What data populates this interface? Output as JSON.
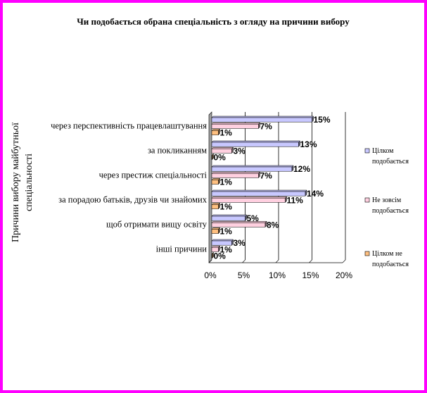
{
  "chart_data": {
    "type": "bar",
    "orientation": "horizontal",
    "view": "3d",
    "title": "Чи подобається обрана спеціальність з огляду на причини вибору",
    "ylabel_lines": [
      "Причини вибору майбутньої",
      "спеціальності"
    ],
    "xlabel": "",
    "categories": [
      "через перспективність працевлаштування",
      "за покликанням",
      "через престиж спеціальності",
      "за порадою батьків, друзів чи знайомих",
      "щоб отримати вищу освіту",
      "інші причини"
    ],
    "series": [
      {
        "name_lines": [
          "Цілком",
          "подобається"
        ],
        "color": "#c8c8ff",
        "values": [
          15,
          13,
          12,
          14,
          5,
          3
        ],
        "labels": [
          "15%",
          "13%",
          "12%",
          "14%",
          "5%",
          "3%"
        ]
      },
      {
        "name_lines": [
          "Не зовсім",
          "подобається"
        ],
        "color": "#ffd0e0",
        "values": [
          7,
          3,
          7,
          11,
          8,
          1
        ],
        "labels": [
          "7%",
          "3%",
          "7%",
          "11%",
          "8%",
          "1%"
        ]
      },
      {
        "name_lines": [
          "Цілком не",
          "подобається"
        ],
        "color": "#ffc080",
        "values": [
          1,
          0,
          1,
          1,
          1,
          0
        ],
        "labels": [
          "1%",
          "0%",
          "1%",
          "1%",
          "1%",
          "0%"
        ]
      }
    ],
    "xlim": [
      0,
      20
    ],
    "xticks": [
      "0%",
      "5%",
      "10%",
      "15%",
      "20%"
    ],
    "grid": true,
    "legend_position": "right"
  }
}
